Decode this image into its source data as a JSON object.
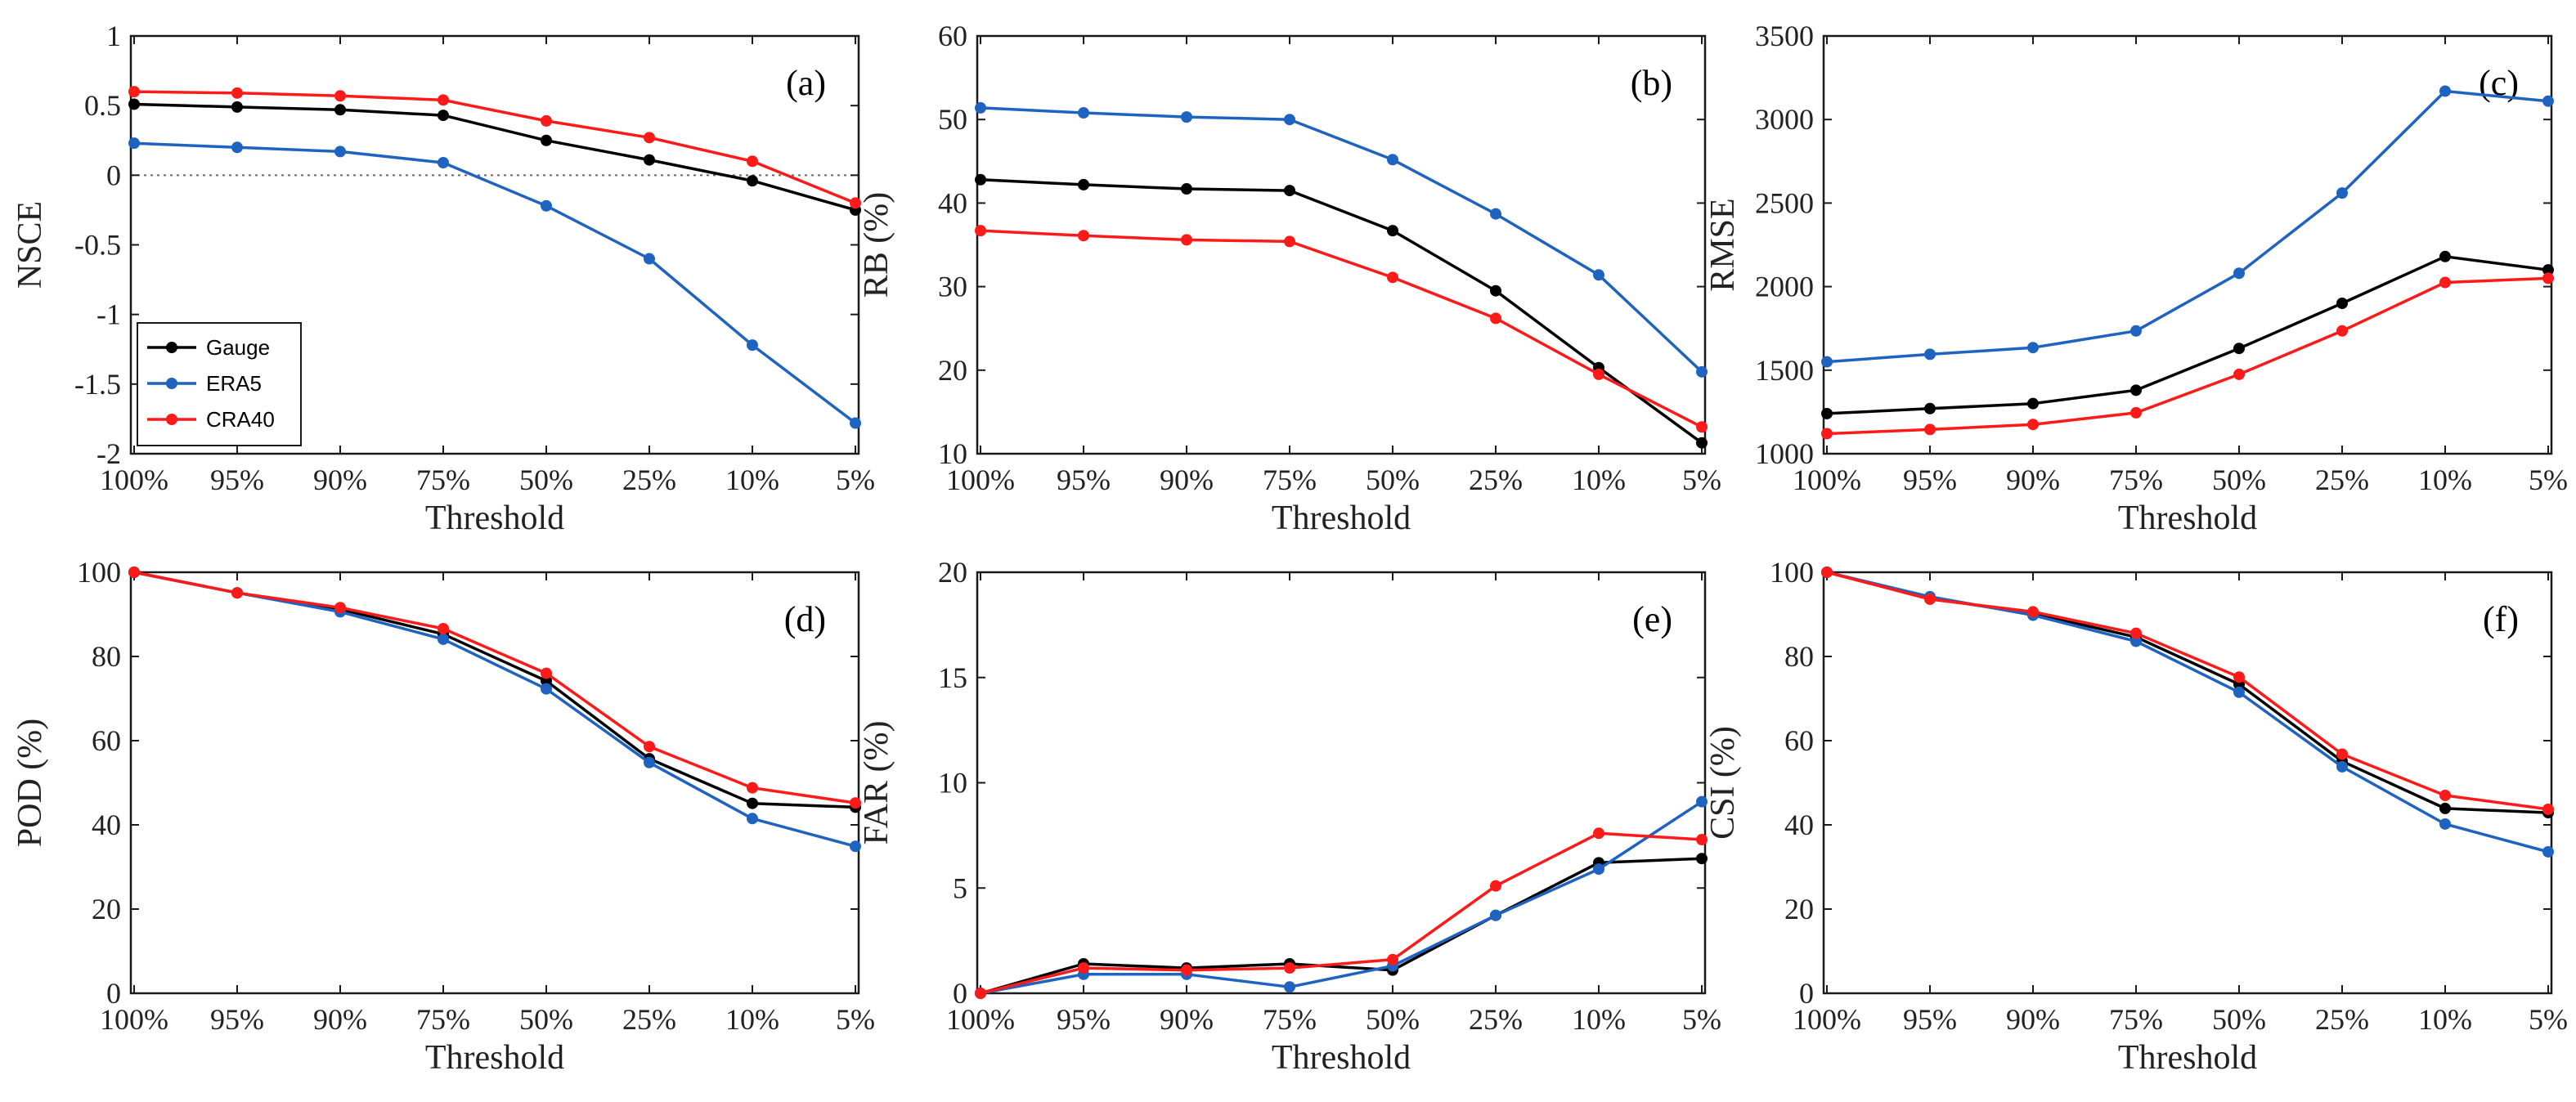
{
  "colors": {
    "Gauge": "#000000",
    "ERA5": "#1f63c0",
    "CRA40": "#ff1a1a",
    "axis": "#1a1a1a"
  },
  "legend": [
    "Gauge",
    "ERA5",
    "CRA40"
  ],
  "chart_data": [
    {
      "type": "line",
      "id": "a",
      "panel_label": "(a)",
      "title": "",
      "xlabel": "Threshold",
      "ylabel": "NSCE",
      "categories": [
        "100%",
        "95%",
        "90%",
        "75%",
        "50%",
        "25%",
        "10%",
        "5%"
      ],
      "ylim": [
        -2,
        1
      ],
      "yticks": [
        1,
        0.5,
        0,
        -0.5,
        -1,
        -1.5,
        -2
      ],
      "ytick_labels": [
        "1",
        "0.5",
        "0",
        "-0.5",
        "-1",
        "-1.5",
        "-2"
      ],
      "zero_line": true,
      "show_legend": true,
      "legend_loc": "lower-left",
      "series": [
        {
          "name": "Gauge",
          "values": [
            0.51,
            0.49,
            0.47,
            0.43,
            0.25,
            0.11,
            -0.04,
            -0.25
          ]
        },
        {
          "name": "ERA5",
          "values": [
            0.23,
            0.2,
            0.17,
            0.09,
            -0.22,
            -0.6,
            -1.22,
            -1.78
          ]
        },
        {
          "name": "CRA40",
          "values": [
            0.6,
            0.59,
            0.57,
            0.54,
            0.39,
            0.27,
            0.1,
            -0.2
          ]
        }
      ]
    },
    {
      "type": "line",
      "id": "b",
      "panel_label": "(b)",
      "title": "",
      "xlabel": "Threshold",
      "ylabel": "RB (%)",
      "categories": [
        "100%",
        "95%",
        "90%",
        "75%",
        "50%",
        "25%",
        "10%",
        "5%"
      ],
      "ylim": [
        10,
        60
      ],
      "yticks": [
        60,
        50,
        40,
        30,
        20,
        10
      ],
      "ytick_labels": [
        "60",
        "50",
        "40",
        "30",
        "20",
        "10"
      ],
      "zero_line": false,
      "show_legend": false,
      "series": [
        {
          "name": "Gauge",
          "values": [
            42.8,
            42.2,
            41.7,
            41.5,
            36.7,
            29.5,
            20.3,
            11.3
          ]
        },
        {
          "name": "ERA5",
          "values": [
            51.4,
            50.8,
            50.3,
            50.0,
            45.2,
            38.7,
            31.4,
            19.8
          ]
        },
        {
          "name": "CRA40",
          "values": [
            36.7,
            36.1,
            35.6,
            35.4,
            31.1,
            26.2,
            19.5,
            13.2
          ]
        }
      ]
    },
    {
      "type": "line",
      "id": "c",
      "panel_label": "(c)",
      "title": "",
      "xlabel": "Threshold",
      "ylabel": "RMSE",
      "categories": [
        "100%",
        "95%",
        "90%",
        "75%",
        "50%",
        "25%",
        "10%",
        "5%"
      ],
      "ylim": [
        1000,
        3500
      ],
      "yticks": [
        3500,
        3000,
        2500,
        2000,
        1500,
        1000
      ],
      "ytick_labels": [
        "3500",
        "3000",
        "2500",
        "2000",
        "1500",
        "1000"
      ],
      "zero_line": false,
      "show_legend": false,
      "series": [
        {
          "name": "Gauge",
          "values": [
            1240,
            1270,
            1300,
            1380,
            1630,
            1900,
            2180,
            2100
          ]
        },
        {
          "name": "ERA5",
          "values": [
            1550,
            1595,
            1635,
            1735,
            2080,
            2560,
            3170,
            3110
          ]
        },
        {
          "name": "CRA40",
          "values": [
            1120,
            1145,
            1175,
            1245,
            1475,
            1735,
            2025,
            2050
          ]
        }
      ]
    },
    {
      "type": "line",
      "id": "d",
      "panel_label": "(d)",
      "title": "",
      "xlabel": "Threshold",
      "ylabel": "POD (%)",
      "categories": [
        "100%",
        "95%",
        "90%",
        "75%",
        "50%",
        "25%",
        "10%",
        "5%"
      ],
      "ylim": [
        0,
        100
      ],
      "yticks": [
        100,
        80,
        60,
        40,
        20,
        0
      ],
      "ytick_labels": [
        "100",
        "80",
        "60",
        "40",
        "20",
        "0"
      ],
      "zero_line": false,
      "show_legend": false,
      "series": [
        {
          "name": "Gauge",
          "values": [
            100,
            95.1,
            91.2,
            85.3,
            74.2,
            55.7,
            45.1,
            44.2
          ]
        },
        {
          "name": "ERA5",
          "values": [
            100,
            95.1,
            90.6,
            84.1,
            72.3,
            54.8,
            41.5,
            34.9
          ]
        },
        {
          "name": "CRA40",
          "values": [
            100,
            95.1,
            91.6,
            86.6,
            76.0,
            58.6,
            48.8,
            45.2
          ]
        }
      ]
    },
    {
      "type": "line",
      "id": "e",
      "panel_label": "(e)",
      "title": "",
      "xlabel": "Threshold",
      "ylabel": "FAR (%)",
      "categories": [
        "100%",
        "95%",
        "90%",
        "75%",
        "50%",
        "25%",
        "10%",
        "5%"
      ],
      "ylim": [
        0,
        20
      ],
      "yticks": [
        20,
        15,
        10,
        5,
        0
      ],
      "ytick_labels": [
        "20",
        "15",
        "10",
        "5",
        "0"
      ],
      "zero_line": false,
      "show_legend": false,
      "series": [
        {
          "name": "Gauge",
          "values": [
            0,
            1.4,
            1.2,
            1.4,
            1.1,
            3.7,
            6.2,
            6.4
          ]
        },
        {
          "name": "ERA5",
          "values": [
            0,
            0.9,
            0.9,
            0.3,
            1.3,
            3.7,
            5.9,
            9.1
          ]
        },
        {
          "name": "CRA40",
          "values": [
            0,
            1.2,
            1.1,
            1.2,
            1.6,
            5.1,
            7.6,
            7.3
          ]
        }
      ]
    },
    {
      "type": "line",
      "id": "f",
      "panel_label": "(f)",
      "title": "",
      "xlabel": "Threshold",
      "ylabel": "CSI (%)",
      "categories": [
        "100%",
        "95%",
        "90%",
        "75%",
        "50%",
        "25%",
        "10%",
        "5%"
      ],
      "ylim": [
        0,
        100
      ],
      "yticks": [
        100,
        80,
        60,
        40,
        20,
        0
      ],
      "ytick_labels": [
        "100",
        "80",
        "60",
        "40",
        "20",
        "0"
      ],
      "zero_line": false,
      "show_legend": false,
      "series": [
        {
          "name": "Gauge",
          "values": [
            100,
            93.8,
            90.2,
            84.6,
            73.4,
            55.1,
            43.9,
            42.9
          ]
        },
        {
          "name": "ERA5",
          "values": [
            100,
            94.2,
            89.8,
            83.6,
            71.5,
            53.8,
            40.2,
            33.6
          ]
        },
        {
          "name": "CRA40",
          "values": [
            100,
            93.6,
            90.6,
            85.5,
            75.1,
            56.8,
            47.0,
            43.7
          ]
        }
      ]
    }
  ]
}
